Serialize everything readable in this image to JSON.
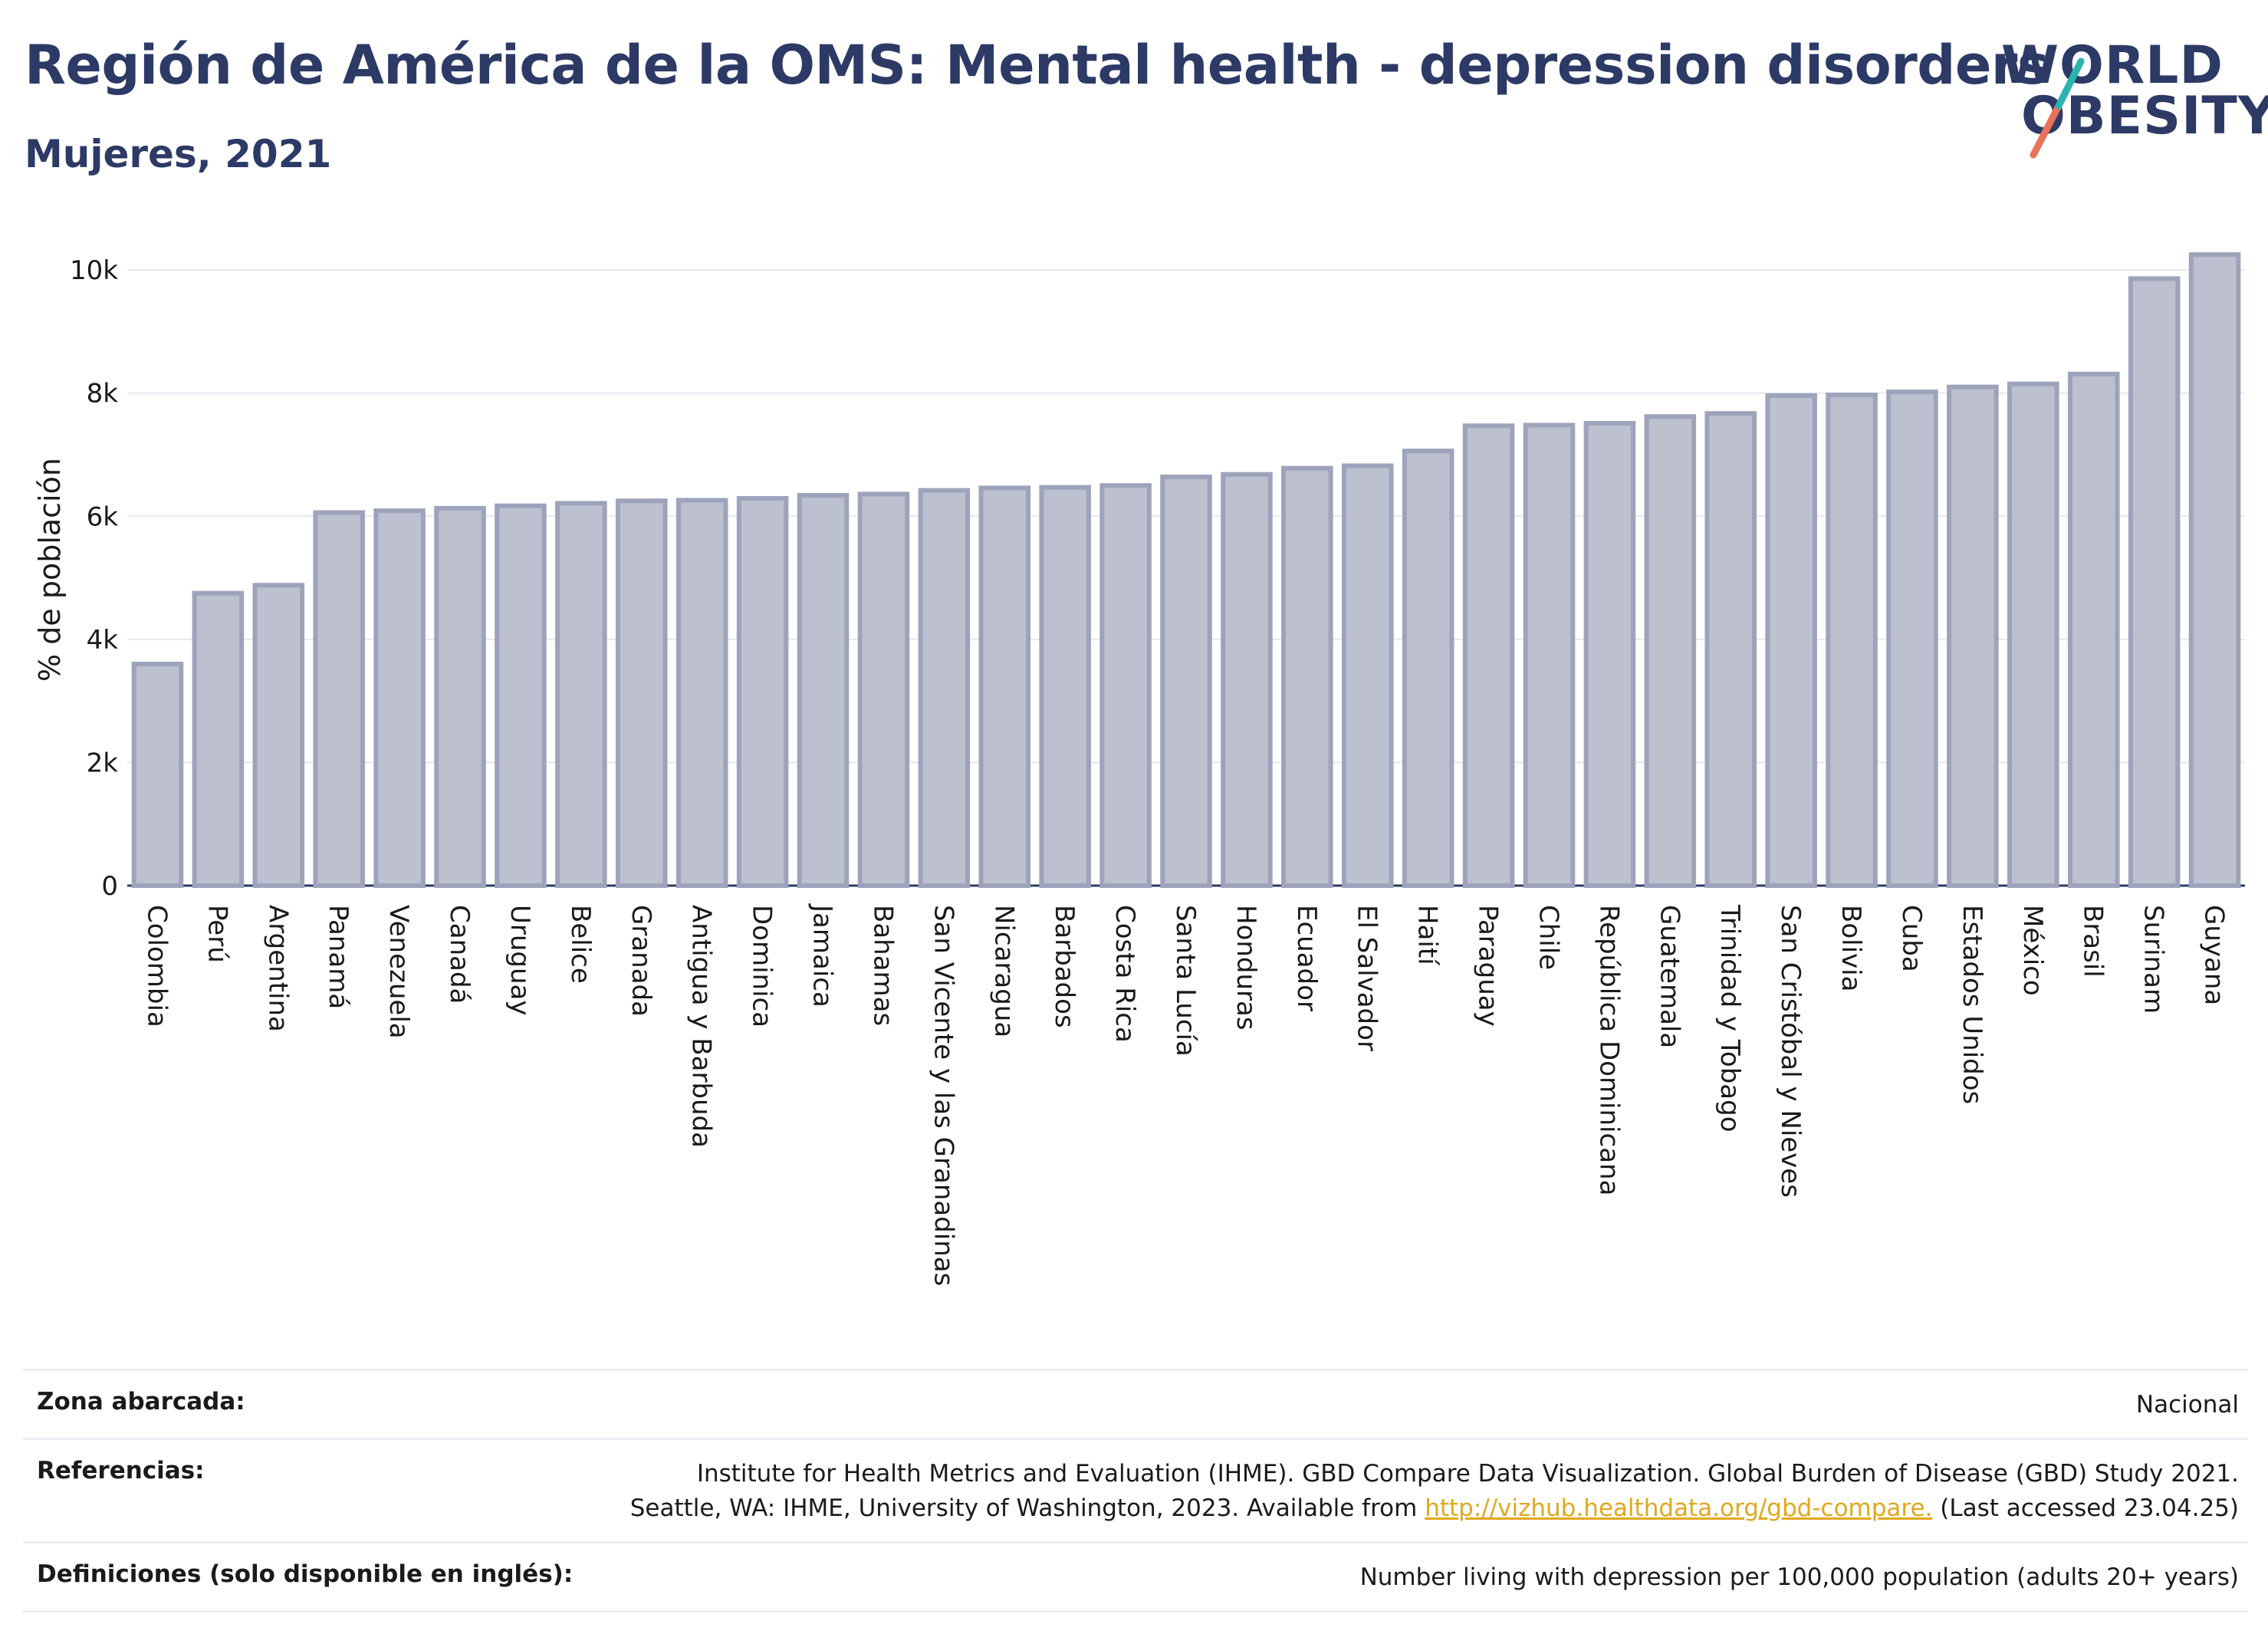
{
  "header": {
    "title": "Región de América de la OMS: Mental health - depression disorders",
    "subtitle": "Mujeres, 2021"
  },
  "logo": {
    "line1": "WORLD",
    "line2": "OBESITY",
    "colors": {
      "text": "#2d3a66",
      "slash_teal": "#2bb3b1",
      "slash_coral": "#e8735a"
    }
  },
  "chart_data": {
    "type": "bar",
    "ylabel": "% de población",
    "yticks": [
      "0",
      "2k",
      "4k",
      "6k",
      "8k",
      "10k"
    ],
    "ytick_values": [
      0,
      2000,
      4000,
      6000,
      8000,
      10000
    ],
    "ylim": [
      0,
      10400
    ],
    "grid": true,
    "bar_fill": "#bcc0cf",
    "bar_stroke": "#9da3bb",
    "categories": [
      "Colombia",
      "Perú",
      "Argentina",
      "Panamá",
      "Venezuela",
      "Canadá",
      "Uruguay",
      "Belice",
      "Granada",
      "Antigua y Barbuda",
      "Dominica",
      "Jamaica",
      "Bahamas",
      "San Vicente y las Granadinas",
      "Nicaragua",
      "Barbados",
      "Costa Rica",
      "Santa Lucía",
      "Honduras",
      "Ecuador",
      "El Salvador",
      "Haití",
      "Paraguay",
      "Chile",
      "República Dominicana",
      "Guatemala",
      "Trinidad y Tobago",
      "San Cristóbal y Nieves",
      "Bolivia",
      "Cuba",
      "Estados Unidos",
      "México",
      "Brasil",
      "Surinam",
      "Guyana"
    ],
    "values": [
      3600,
      4750,
      4880,
      6060,
      6090,
      6130,
      6170,
      6210,
      6250,
      6260,
      6290,
      6340,
      6360,
      6420,
      6460,
      6470,
      6500,
      6640,
      6680,
      6780,
      6820,
      7060,
      7470,
      7480,
      7510,
      7620,
      7670,
      7960,
      7970,
      8020,
      8100,
      8150,
      8310,
      9860,
      10250
    ]
  },
  "info": {
    "zona_label": "Zona abarcada:",
    "zona_value": "Nacional",
    "ref_label": "Referencias:",
    "ref_line1": "Institute for Health Metrics and Evaluation (IHME). GBD Compare Data Visualization. Global Burden of Disease (GBD) Study 2021.",
    "ref_line2_pre": "Seattle, WA: IHME, University of Washington, 2023. Available from ",
    "ref_link": "http://vizhub.healthdata.org/gbd-compare.",
    "ref_line2_post": " (Last accessed 23.04.25)",
    "def_label": "Definiciones (solo disponible en inglés):",
    "def_value": "Number living with depression per 100,000 population (adults 20+ years)"
  }
}
